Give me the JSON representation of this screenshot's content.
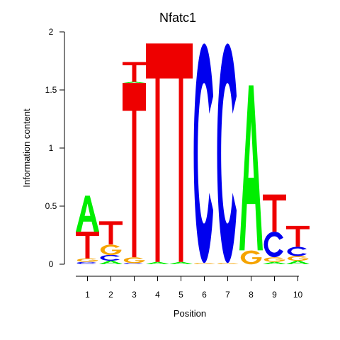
{
  "chart_data": {
    "type": "sequence-logo",
    "title": "Nfatc1",
    "xlabel": "Position",
    "ylabel": "Information content",
    "ylim": [
      0,
      2
    ],
    "yticks": [
      "0",
      "0.5",
      "1",
      "1.5",
      "2"
    ],
    "positions": [
      "1",
      "2",
      "3",
      "4",
      "5",
      "6",
      "7",
      "8",
      "9",
      "10"
    ],
    "colors": {
      "A": "#00ee00",
      "C": "#0000ee",
      "G": "#f5a400",
      "T": "#ee0000"
    },
    "columns": [
      [
        {
          "letter": "C",
          "height": 0.02
        },
        {
          "letter": "G",
          "height": 0.03
        },
        {
          "letter": "T",
          "height": 0.23
        },
        {
          "letter": "A",
          "height": 0.31
        }
      ],
      [
        {
          "letter": "A",
          "height": 0.03
        },
        {
          "letter": "C",
          "height": 0.05
        },
        {
          "letter": "G",
          "height": 0.09
        },
        {
          "letter": "T",
          "height": 0.2
        }
      ],
      [
        {
          "letter": "C",
          "height": 0.01
        },
        {
          "letter": "G",
          "height": 0.05
        },
        {
          "letter": "T",
          "height": 1.5
        },
        {
          "letter": "A",
          "height": 0.01
        },
        {
          "letter": "T",
          "height": 0.17
        }
      ],
      [
        {
          "letter": "A",
          "height": 0.02
        },
        {
          "letter": "T",
          "height": 1.88
        }
      ],
      [
        {
          "letter": "A",
          "height": 0.02
        },
        {
          "letter": "T",
          "height": 1.88
        }
      ],
      [
        {
          "letter": "G",
          "height": 0.01
        },
        {
          "letter": "C",
          "height": 1.89
        }
      ],
      [
        {
          "letter": "G",
          "height": 0.01
        },
        {
          "letter": "C",
          "height": 1.89
        }
      ],
      [
        {
          "letter": "G",
          "height": 0.12
        },
        {
          "letter": "A",
          "height": 1.42
        }
      ],
      [
        {
          "letter": "A",
          "height": 0.02
        },
        {
          "letter": "G",
          "height": 0.04
        },
        {
          "letter": "C",
          "height": 0.22
        },
        {
          "letter": "T",
          "height": 0.32
        }
      ],
      [
        {
          "letter": "A",
          "height": 0.03
        },
        {
          "letter": "G",
          "height": 0.04
        },
        {
          "letter": "C",
          "height": 0.08
        },
        {
          "letter": "T",
          "height": 0.18
        }
      ]
    ]
  }
}
